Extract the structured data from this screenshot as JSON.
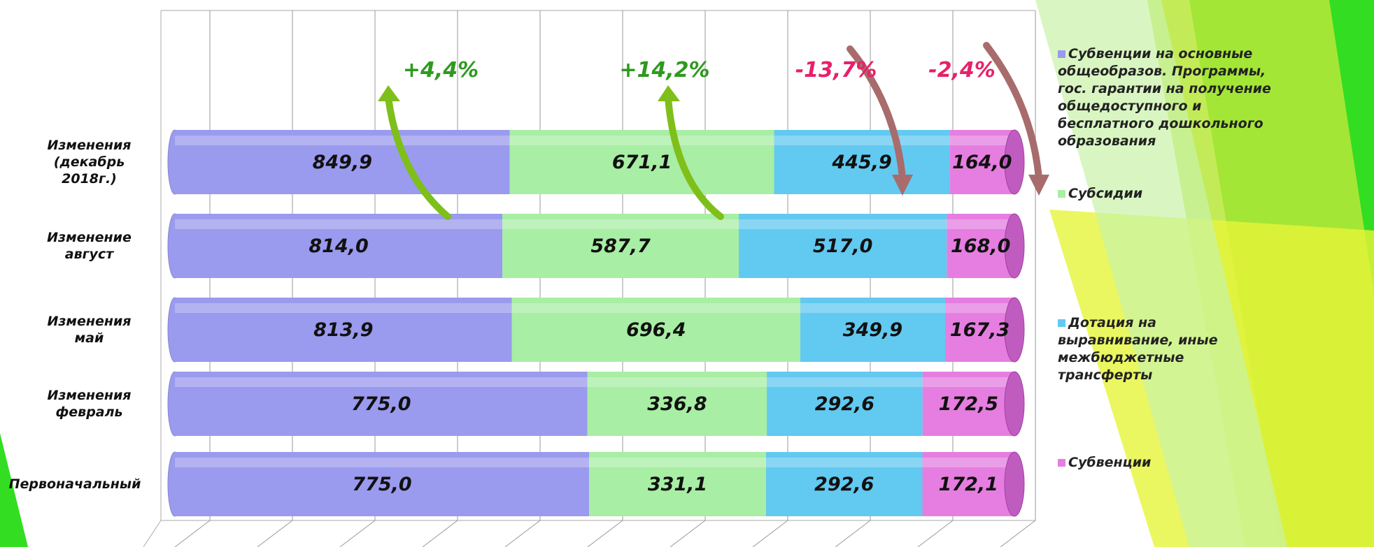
{
  "chart_data": {
    "type": "bar",
    "orientation": "horizontal",
    "stacked": "percent",
    "categories": [
      "Изменения (декабрь 2018г.)",
      "Изменение август",
      "Изменения май",
      "Изменения февраль",
      "Первоначальный"
    ],
    "series": [
      {
        "name": "Субвенции на основные общеобразов. Программы, гос. гарантии на получение общедоступного и бесплатного дошкольного образования",
        "color": "#9a9aee",
        "values": [
          849.9,
          814.0,
          813.9,
          775.0,
          775.0
        ],
        "value_labels": [
          "849,9",
          "814,0",
          "813,9",
          "775,0",
          "775,0"
        ]
      },
      {
        "name": "Субсидии",
        "color": "#a8eea4",
        "values": [
          671.1,
          587.7,
          696.4,
          336.8,
          331.1
        ],
        "value_labels": [
          "671,1",
          "587,7",
          "696,4",
          "336,8",
          "331,1"
        ]
      },
      {
        "name": "Дотация на выравнивание, иные межбюджетные трансферты",
        "color": "#62c9f0",
        "values": [
          445.9,
          517.0,
          349.9,
          292.6,
          292.6
        ],
        "value_labels": [
          "445,9",
          "517,0",
          "349,9",
          "292,6",
          "292,6"
        ]
      },
      {
        "name": "Субвенции",
        "color": "#e57ee0",
        "values": [
          164.0,
          168.0,
          167.3,
          172.5,
          172.1
        ],
        "value_labels": [
          "164,0",
          "168,0",
          "167,3",
          "172,5",
          "172,1"
        ]
      }
    ],
    "annotations": [
      {
        "text": "+4,4%",
        "color": "#2e9a1e"
      },
      {
        "text": "+14,2%",
        "color": "#2e9a1e"
      },
      {
        "text": "-13,7%",
        "color": "#e8206a"
      },
      {
        "text": "-2,4%",
        "color": "#e8206a"
      }
    ]
  }
}
